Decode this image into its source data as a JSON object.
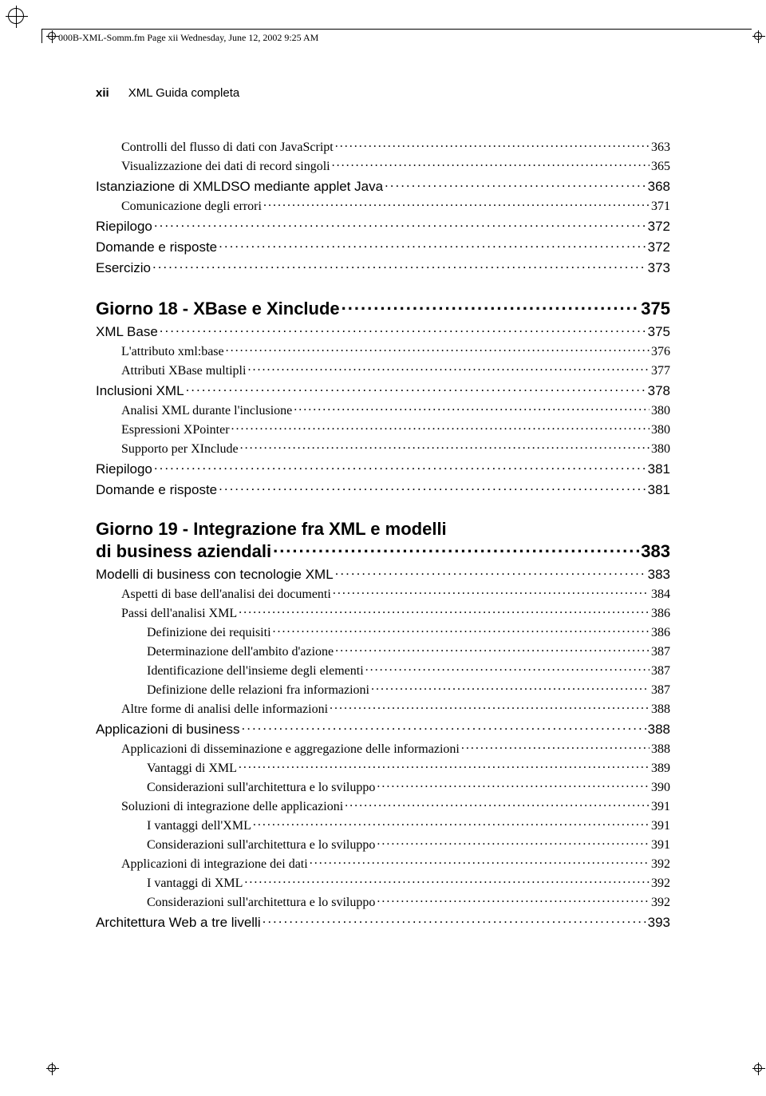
{
  "crop_marks": {
    "color": "#000000"
  },
  "header_line": "000B-XML-Somm.fm  Page xii  Wednesday, June 12, 2002  9:25 AM",
  "running_head": {
    "page_number": "xii",
    "title": "XML Guida completa"
  },
  "toc": [
    {
      "level": "3",
      "label": "Controlli del flusso di dati con JavaScript",
      "page": "363"
    },
    {
      "level": "3",
      "label": "Visualizzazione dei dati di record singoli",
      "page": "365"
    },
    {
      "level": "h2",
      "label": "Istanziazione di XMLDSO mediante applet Java",
      "page": "368"
    },
    {
      "level": "3",
      "label": "Comunicazione degli errori",
      "page": "371"
    },
    {
      "level": "h2",
      "label": "Riepilogo",
      "page": "372"
    },
    {
      "level": "h2",
      "label": "Domande e risposte",
      "page": "372"
    },
    {
      "level": "h2",
      "label": "Esercizio",
      "page": "373"
    },
    {
      "level": "h1",
      "label": "Giorno 18 - XBase e Xinclude",
      "page": "375"
    },
    {
      "level": "h2",
      "label": "XML Base",
      "page": "375"
    },
    {
      "level": "3",
      "label": "L'attributo xml:base",
      "page": "376"
    },
    {
      "level": "3",
      "label": "Attributi XBase multipli",
      "page": "377"
    },
    {
      "level": "h2",
      "label": "Inclusioni XML",
      "page": "378"
    },
    {
      "level": "3",
      "label": "Analisi XML durante l'inclusione",
      "page": "380"
    },
    {
      "level": "3",
      "label": "Espressioni XPointer",
      "page": "380"
    },
    {
      "level": "3",
      "label": "Supporto per XInclude",
      "page": "380"
    },
    {
      "level": "h2",
      "label": "Riepilogo",
      "page": "381"
    },
    {
      "level": "h2",
      "label": "Domande e risposte",
      "page": "381"
    },
    {
      "level": "h1",
      "label_line1": "Giorno 19 - Integrazione fra XML e modelli",
      "label_line2": "di business aziendali",
      "page": "383",
      "multiline": true
    },
    {
      "level": "h2",
      "label": "Modelli di business con tecnologie XML",
      "page": "383"
    },
    {
      "level": "3",
      "label": "Aspetti di base dell'analisi dei documenti",
      "page": "384"
    },
    {
      "level": "3",
      "label": "Passi dell'analisi XML",
      "page": "386"
    },
    {
      "level": "4",
      "label": "Definizione dei requisiti",
      "page": "386"
    },
    {
      "level": "4",
      "label": "Determinazione dell'ambito d'azione",
      "page": "387"
    },
    {
      "level": "4",
      "label": "Identificazione dell'insieme degli elementi",
      "page": "387"
    },
    {
      "level": "4",
      "label": "Definizione delle relazioni fra informazioni",
      "page": "387"
    },
    {
      "level": "3",
      "label": "Altre forme di analisi delle informazioni",
      "page": "388"
    },
    {
      "level": "h2",
      "label": "Applicazioni di business",
      "page": "388"
    },
    {
      "level": "3",
      "label": "Applicazioni di disseminazione e aggregazione delle informazioni",
      "page": "388"
    },
    {
      "level": "4",
      "label": "Vantaggi di XML",
      "page": "389"
    },
    {
      "level": "4",
      "label": "Considerazioni sull'architettura e lo sviluppo",
      "page": "390"
    },
    {
      "level": "3",
      "label": "Soluzioni di integrazione delle applicazioni",
      "page": "391"
    },
    {
      "level": "4",
      "label": "I vantaggi dell'XML",
      "page": "391"
    },
    {
      "level": "4",
      "label": "Considerazioni sull'architettura e lo sviluppo",
      "page": "391"
    },
    {
      "level": "3",
      "label": "Applicazioni di integrazione dei dati",
      "page": "392"
    },
    {
      "level": "4",
      "label": "I vantaggi di XML",
      "page": "392"
    },
    {
      "level": "4",
      "label": "Considerazioni sull'architettura e lo sviluppo",
      "page": "392"
    },
    {
      "level": "h2",
      "label": "Architettura Web a tre livelli",
      "page": "393"
    }
  ]
}
